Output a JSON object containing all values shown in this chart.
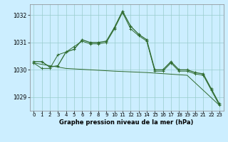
{
  "line1": {
    "x": [
      0,
      1,
      2,
      3,
      4,
      5,
      6,
      7,
      8,
      9,
      10,
      11,
      12,
      13,
      14,
      15,
      16,
      17,
      18,
      19,
      20,
      21,
      22,
      23
    ],
    "y": [
      1030.3,
      1030.3,
      1030.1,
      1030.15,
      1030.65,
      1030.75,
      1031.1,
      1031.0,
      1031.0,
      1031.05,
      1031.55,
      1032.15,
      1031.6,
      1031.3,
      1031.1,
      1030.0,
      1030.0,
      1030.3,
      1030.0,
      1030.0,
      1029.9,
      1029.85,
      1029.3,
      1028.75
    ]
  },
  "line2": {
    "x": [
      0,
      1,
      2,
      3,
      4,
      5,
      6,
      7,
      8,
      9,
      10,
      11,
      12,
      13,
      14,
      15,
      16,
      17,
      18,
      19,
      20,
      21,
      22,
      23
    ],
    "y": [
      1030.25,
      1030.05,
      1030.05,
      1030.55,
      1030.65,
      1030.85,
      1031.05,
      1030.95,
      1030.95,
      1031.0,
      1031.5,
      1032.1,
      1031.5,
      1031.25,
      1031.05,
      1029.95,
      1029.95,
      1030.25,
      1029.95,
      1029.95,
      1029.85,
      1029.8,
      1029.25,
      1028.7
    ]
  },
  "line3": {
    "x": [
      0,
      4,
      10,
      14,
      19,
      23
    ],
    "y": [
      1030.25,
      1030.05,
      1029.95,
      1029.9,
      1029.8,
      1028.7
    ]
  },
  "line_color": "#2d6a2d",
  "bg_color": "#cceeff",
  "grid_color": "#99cccc",
  "xlabel": "Graphe pression niveau de la mer (hPa)",
  "ylim": [
    1028.5,
    1032.4
  ],
  "xlim": [
    -0.5,
    23.5
  ],
  "yticks": [
    1029,
    1030,
    1031,
    1032
  ],
  "xticks": [
    0,
    1,
    2,
    3,
    4,
    5,
    6,
    7,
    8,
    9,
    10,
    11,
    12,
    13,
    14,
    15,
    16,
    17,
    18,
    19,
    20,
    21,
    22,
    23
  ]
}
